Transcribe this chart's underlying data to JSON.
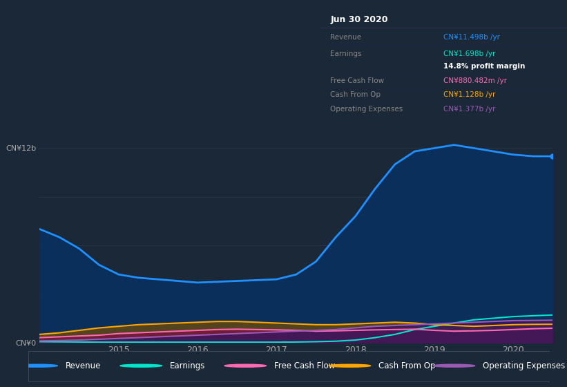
{
  "bg_color": "#1b2838",
  "plot_bg_color": "#1b2838",
  "grid_color": "#2a3a50",
  "title_date": "Jun 30 2020",
  "info_box": {
    "Revenue": {
      "value": "CN¥11.498b /yr",
      "color": "#1e90ff"
    },
    "Earnings": {
      "value": "CN¥1.698b /yr",
      "color": "#00e5cc"
    },
    "profit_margin": "14.8% profit margin",
    "Free Cash Flow": {
      "value": "CN¥880.482m /yr",
      "color": "#ff69b4"
    },
    "Cash From Op": {
      "value": "CN¥1.128b /yr",
      "color": "#ffa500"
    },
    "Operating Expenses": {
      "value": "CN¥1.377b /yr",
      "color": "#9b59b6"
    }
  },
  "x_years": [
    2014.0,
    2014.25,
    2014.5,
    2014.75,
    2015.0,
    2015.25,
    2015.5,
    2015.75,
    2016.0,
    2016.25,
    2016.5,
    2016.75,
    2017.0,
    2017.25,
    2017.5,
    2017.75,
    2018.0,
    2018.25,
    2018.5,
    2018.75,
    2019.0,
    2019.25,
    2019.5,
    2019.75,
    2020.0,
    2020.25,
    2020.5
  ],
  "revenue": [
    7.0,
    6.5,
    5.8,
    4.8,
    4.2,
    4.0,
    3.9,
    3.8,
    3.7,
    3.75,
    3.8,
    3.85,
    3.9,
    4.2,
    5.0,
    6.5,
    7.8,
    9.5,
    11.0,
    11.8,
    12.0,
    12.2,
    12.0,
    11.8,
    11.6,
    11.5,
    11.498
  ],
  "earnings": [
    0.05,
    0.04,
    0.03,
    0.02,
    0.02,
    0.02,
    0.02,
    0.02,
    0.02,
    0.02,
    0.02,
    0.02,
    0.02,
    0.03,
    0.05,
    0.08,
    0.15,
    0.3,
    0.5,
    0.8,
    1.0,
    1.2,
    1.4,
    1.5,
    1.6,
    1.65,
    1.698
  ],
  "free_cash_flow": [
    0.3,
    0.35,
    0.4,
    0.45,
    0.55,
    0.6,
    0.65,
    0.7,
    0.75,
    0.8,
    0.82,
    0.8,
    0.78,
    0.75,
    0.7,
    0.72,
    0.75,
    0.78,
    0.8,
    0.82,
    0.75,
    0.7,
    0.72,
    0.75,
    0.8,
    0.85,
    0.88
  ],
  "cash_from_op": [
    0.5,
    0.6,
    0.75,
    0.9,
    1.0,
    1.1,
    1.15,
    1.2,
    1.25,
    1.3,
    1.3,
    1.25,
    1.2,
    1.15,
    1.1,
    1.1,
    1.15,
    1.2,
    1.25,
    1.2,
    1.1,
    1.05,
    1.0,
    1.05,
    1.1,
    1.12,
    1.128
  ],
  "op_expenses": [
    0.1,
    0.12,
    0.15,
    0.2,
    0.25,
    0.3,
    0.35,
    0.4,
    0.45,
    0.5,
    0.55,
    0.6,
    0.65,
    0.7,
    0.75,
    0.8,
    0.9,
    1.0,
    1.05,
    1.1,
    1.15,
    1.2,
    1.25,
    1.3,
    1.35,
    1.36,
    1.377
  ],
  "ylim": [
    0,
    13.5
  ],
  "yticks": [
    0,
    3,
    6,
    9,
    12
  ],
  "ytick_labels": [
    "CN¥0",
    "",
    "",
    "",
    "CN¥12b"
  ],
  "xtick_years": [
    2015,
    2016,
    2017,
    2018,
    2019,
    2020
  ],
  "series_colors": {
    "revenue": "#1e90ff",
    "earnings": "#00e5cc",
    "free_cash_flow": "#ff69b4",
    "cash_from_op": "#ffa500",
    "op_expenses": "#9b59b6"
  },
  "legend_items": [
    {
      "label": "Revenue",
      "color": "#1e90ff"
    },
    {
      "label": "Earnings",
      "color": "#00e5cc"
    },
    {
      "label": "Free Cash Flow",
      "color": "#ff69b4"
    },
    {
      "label": "Cash From Op",
      "color": "#ffa500"
    },
    {
      "label": "Operating Expenses",
      "color": "#9b59b6"
    }
  ]
}
